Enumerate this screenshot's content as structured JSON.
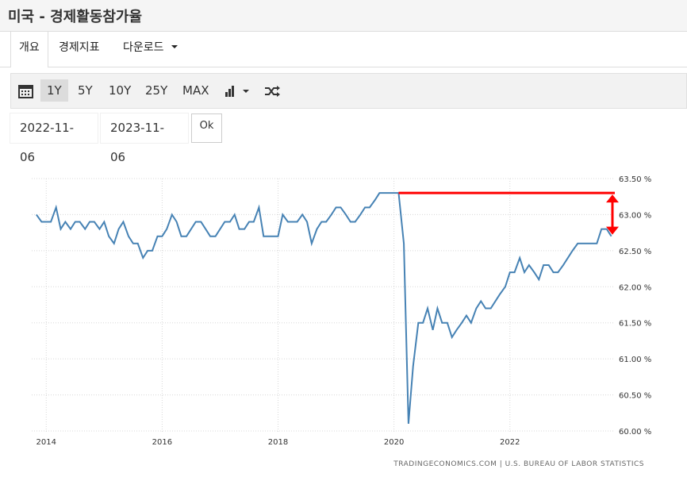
{
  "header": {
    "title": "미국 - 경제활동참가율"
  },
  "tabs": [
    "개요",
    "경제지표",
    "다운로드"
  ],
  "toolbar": {
    "ranges": [
      "1Y",
      "5Y",
      "10Y",
      "25Y",
      "MAX"
    ],
    "active_range": "1Y"
  },
  "date_range": {
    "start": "2022-11-06",
    "end": "2023-11-06",
    "ok": "Ok"
  },
  "chart_data": {
    "type": "line",
    "source": "TRADINGECONOMICS.COM  |  U.S. BUREAU OF LABOR STATISTICS",
    "color": "#4682b4",
    "x": [
      2013.83,
      2013.92,
      2014,
      2014.08,
      2014.17,
      2014.25,
      2014.33,
      2014.42,
      2014.5,
      2014.58,
      2014.67,
      2014.75,
      2014.83,
      2014.92,
      2015,
      2015.08,
      2015.17,
      2015.25,
      2015.33,
      2015.42,
      2015.5,
      2015.58,
      2015.67,
      2015.75,
      2015.83,
      2015.92,
      2016,
      2016.08,
      2016.17,
      2016.25,
      2016.33,
      2016.42,
      2016.5,
      2016.58,
      2016.67,
      2016.75,
      2016.83,
      2016.92,
      2017,
      2017.08,
      2017.17,
      2017.25,
      2017.33,
      2017.42,
      2017.5,
      2017.58,
      2017.67,
      2017.75,
      2017.83,
      2017.92,
      2018,
      2018.08,
      2018.17,
      2018.25,
      2018.33,
      2018.42,
      2018.5,
      2018.58,
      2018.67,
      2018.75,
      2018.83,
      2018.92,
      2019,
      2019.08,
      2019.17,
      2019.25,
      2019.33,
      2019.42,
      2019.5,
      2019.58,
      2019.67,
      2019.75,
      2019.83,
      2019.92,
      2020,
      2020.08,
      2020.17,
      2020.25,
      2020.33,
      2020.42,
      2020.5,
      2020.58,
      2020.67,
      2020.75,
      2020.83,
      2020.92,
      2021,
      2021.08,
      2021.17,
      2021.25,
      2021.33,
      2021.42,
      2021.5,
      2021.58,
      2021.67,
      2021.75,
      2021.83,
      2021.92,
      2022,
      2022.08,
      2022.17,
      2022.25,
      2022.33,
      2022.42,
      2022.5,
      2022.58,
      2022.67,
      2022.75,
      2022.83,
      2022.92,
      2023,
      2023.08,
      2023.17,
      2023.25,
      2023.33,
      2023.42,
      2023.5,
      2023.58,
      2023.67,
      2023.75
    ],
    "values": [
      63.0,
      62.9,
      62.9,
      62.9,
      63.1,
      62.8,
      62.9,
      62.8,
      62.9,
      62.9,
      62.8,
      62.9,
      62.9,
      62.8,
      62.9,
      62.7,
      62.6,
      62.8,
      62.9,
      62.7,
      62.6,
      62.6,
      62.4,
      62.5,
      62.5,
      62.7,
      62.7,
      62.8,
      63.0,
      62.9,
      62.7,
      62.7,
      62.8,
      62.9,
      62.9,
      62.8,
      62.7,
      62.7,
      62.8,
      62.9,
      62.9,
      63.0,
      62.8,
      62.8,
      62.9,
      62.9,
      63.1,
      62.7,
      62.7,
      62.7,
      62.7,
      63.0,
      62.9,
      62.9,
      62.9,
      63.0,
      62.9,
      62.6,
      62.8,
      62.9,
      62.9,
      63.0,
      63.1,
      63.1,
      63.0,
      62.9,
      62.9,
      63.0,
      63.1,
      63.1,
      63.2,
      63.3,
      63.3,
      63.3,
      63.3,
      63.3,
      62.6,
      60.1,
      60.9,
      61.5,
      61.5,
      61.7,
      61.4,
      61.7,
      61.5,
      61.5,
      61.3,
      61.4,
      61.5,
      61.6,
      61.5,
      61.7,
      61.8,
      61.7,
      61.7,
      61.8,
      61.9,
      62.0,
      62.2,
      62.2,
      62.4,
      62.2,
      62.3,
      62.2,
      62.1,
      62.3,
      62.3,
      62.2,
      62.2,
      62.3,
      62.4,
      62.5,
      62.6,
      62.6,
      62.6,
      62.6,
      62.6,
      62.8,
      62.8,
      62.7
    ],
    "xlim": [
      2013.75,
      2023.81
    ],
    "xticks": [
      2014,
      2016,
      2018,
      2020,
      2022
    ],
    "ylim": [
      60,
      63.5
    ],
    "yticks": [
      {
        "value": 60,
        "label": "60.00 %"
      },
      {
        "value": 60.5,
        "label": "60.50 %"
      },
      {
        "value": 61,
        "label": "61.00 %"
      },
      {
        "value": 61.5,
        "label": "61.50 %"
      },
      {
        "value": 62,
        "label": "62.00 %"
      },
      {
        "value": 62.5,
        "label": "62.50 %"
      },
      {
        "value": 63,
        "label": "63.00 %"
      },
      {
        "value": 63.5,
        "label": "63.50 %"
      }
    ],
    "grid": true,
    "highlight": {
      "from_x": 2020.08,
      "from_y": 63.3,
      "to_y": 62.7,
      "color": "#ff0000"
    }
  }
}
